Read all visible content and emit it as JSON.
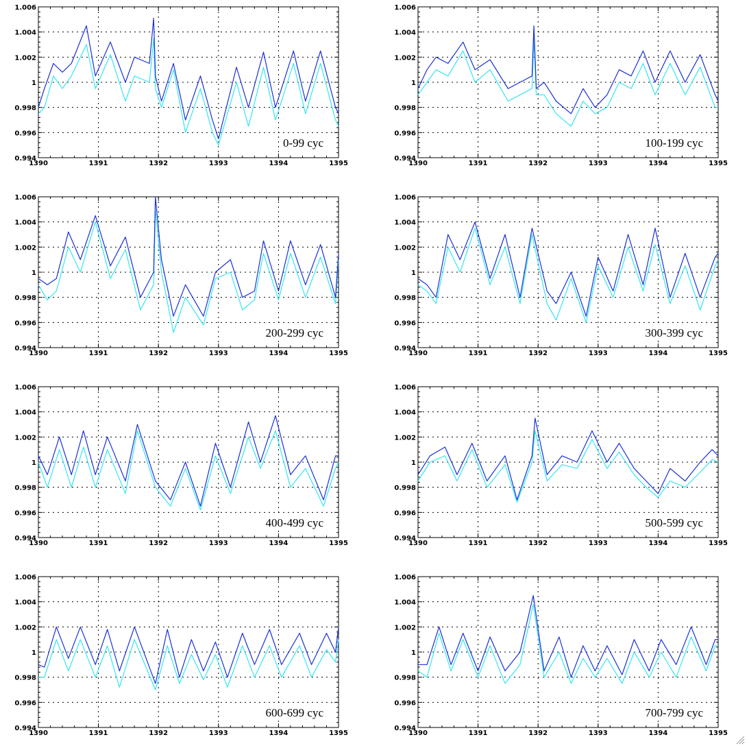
{
  "figure": {
    "colors": {
      "series_a": "#1a2fd6",
      "series_b": "#33e6f0",
      "grid": "#000000",
      "frame": "#000000"
    },
    "xticks": [
      "1390",
      "1391",
      "1392",
      "1393",
      "1394",
      "1395"
    ],
    "yticks": [
      "0.994",
      "0.996",
      "0.998",
      "1",
      "1.002",
      "1.004",
      "1.006"
    ]
  },
  "chart_data": [
    {
      "type": "line",
      "label": "0-99 cyc",
      "xlim": [
        1390,
        1395
      ],
      "ylim": [
        0.994,
        1.006
      ],
      "grid": true,
      "series": [
        {
          "color": "#1a2fd6",
          "x": [
            1390,
            1390.1,
            1390.25,
            1390.4,
            1390.55,
            1390.8,
            1390.95,
            1391.2,
            1391.45,
            1391.6,
            1391.85,
            1391.92,
            1391.95,
            1392.05,
            1392.25,
            1392.45,
            1392.7,
            1392.9,
            1393,
            1393.3,
            1393.5,
            1393.75,
            1393.95,
            1394.25,
            1394.45,
            1394.7,
            1394.95,
            1395
          ],
          "y": [
            0.998,
            0.9995,
            1.0015,
            1.0008,
            1.0015,
            1.0045,
            1.0005,
            1.0032,
            1.0,
            1.002,
            1.0015,
            1.0051,
            1.0005,
            0.9985,
            1.0015,
            0.997,
            1.0005,
            0.997,
            0.9955,
            1.0012,
            0.998,
            1.0024,
            0.998,
            1.0025,
            0.9985,
            1.0025,
            0.998,
            0.9975
          ]
        },
        {
          "color": "#33e6f0",
          "x": [
            1390,
            1390.1,
            1390.25,
            1390.4,
            1390.55,
            1390.8,
            1390.95,
            1391.2,
            1391.45,
            1391.6,
            1391.85,
            1391.92,
            1391.95,
            1392.05,
            1392.25,
            1392.45,
            1392.7,
            1392.9,
            1393,
            1393.3,
            1393.5,
            1393.75,
            1393.95,
            1394.25,
            1394.45,
            1394.7,
            1394.95,
            1395
          ],
          "y": [
            0.9975,
            0.998,
            1.0005,
            0.9995,
            1.0005,
            1.003,
            0.9995,
            1.0022,
            0.9985,
            1.0005,
            1.0,
            1.0035,
            0.9995,
            0.998,
            1.001,
            0.996,
            0.9995,
            0.996,
            0.995,
            1.0,
            0.9965,
            1.0012,
            0.997,
            1.0015,
            0.9975,
            1.0015,
            0.997,
            0.9965
          ]
        }
      ]
    },
    {
      "type": "line",
      "label": "100-199 cyc",
      "xlim": [
        1390,
        1395
      ],
      "ylim": [
        0.994,
        1.006
      ],
      "grid": true,
      "series": [
        {
          "color": "#1a2fd6",
          "x": [
            1390,
            1390.15,
            1390.3,
            1390.5,
            1390.75,
            1390.95,
            1391.2,
            1391.5,
            1391.7,
            1391.9,
            1391.93,
            1391.97,
            1392.1,
            1392.3,
            1392.55,
            1392.75,
            1392.95,
            1393.15,
            1393.35,
            1393.55,
            1393.75,
            1393.95,
            1394.2,
            1394.45,
            1394.7,
            1394.95,
            1395
          ],
          "y": [
            0.9995,
            1.001,
            1.002,
            1.0015,
            1.0032,
            1.001,
            1.0018,
            0.9995,
            1.0,
            1.0005,
            1.0045,
            0.9995,
            1.0,
            0.9985,
            0.9975,
            0.9995,
            0.998,
            0.999,
            1.001,
            1.0005,
            1.0025,
            1.0,
            1.0025,
            1.0,
            1.0022,
            0.999,
            0.9985
          ]
        },
        {
          "color": "#33e6f0",
          "x": [
            1390,
            1390.15,
            1390.3,
            1390.5,
            1390.75,
            1390.95,
            1391.2,
            1391.5,
            1391.7,
            1391.9,
            1391.93,
            1391.97,
            1392.1,
            1392.3,
            1392.55,
            1392.75,
            1392.95,
            1393.15,
            1393.35,
            1393.55,
            1393.75,
            1393.95,
            1394.2,
            1394.45,
            1394.7,
            1394.95,
            1395
          ],
          "y": [
            0.999,
            1.0,
            1.001,
            1.0005,
            1.0025,
            1.0,
            1.001,
            0.9985,
            0.999,
            0.9995,
            1.0035,
            0.999,
            0.999,
            0.9975,
            0.9965,
            0.9985,
            0.9975,
            0.998,
            1.0,
            0.9995,
            1.0015,
            0.999,
            1.0015,
            0.999,
            1.0012,
            0.998,
            0.998
          ]
        }
      ]
    },
    {
      "type": "line",
      "label": "200-299 cyc",
      "xlim": [
        1390,
        1395
      ],
      "ylim": [
        0.994,
        1.006
      ],
      "grid": true,
      "series": [
        {
          "color": "#1a2fd6",
          "x": [
            1390,
            1390.15,
            1390.3,
            1390.5,
            1390.7,
            1390.95,
            1391.2,
            1391.45,
            1391.7,
            1391.92,
            1391.95,
            1392.05,
            1392.25,
            1392.45,
            1392.75,
            1392.95,
            1393.2,
            1393.4,
            1393.6,
            1393.75,
            1394.0,
            1394.2,
            1394.45,
            1394.7,
            1394.95,
            1395
          ],
          "y": [
            0.9995,
            0.999,
            0.9995,
            1.0032,
            1.001,
            1.0045,
            1.0005,
            1.0028,
            0.998,
            1.0,
            1.006,
            1.001,
            0.9965,
            0.999,
            0.9965,
            1.0,
            1.001,
            0.998,
            0.9985,
            1.0025,
            0.9985,
            1.0025,
            0.999,
            1.0022,
            0.998,
            1.0015
          ]
        },
        {
          "color": "#33e6f0",
          "x": [
            1390,
            1390.15,
            1390.3,
            1390.5,
            1390.7,
            1390.95,
            1391.2,
            1391.45,
            1391.7,
            1391.92,
            1391.95,
            1392.05,
            1392.25,
            1392.45,
            1392.75,
            1392.95,
            1393.2,
            1393.4,
            1393.6,
            1393.75,
            1394.0,
            1394.2,
            1394.45,
            1394.7,
            1394.95,
            1395
          ],
          "y": [
            0.999,
            0.9978,
            0.9985,
            1.002,
            1.0,
            1.004,
            0.9995,
            1.0018,
            0.997,
            0.999,
            1.005,
            1.0,
            0.9952,
            0.998,
            0.9958,
            0.9995,
            1.0,
            0.997,
            0.9978,
            1.0015,
            0.9978,
            1.0015,
            0.998,
            1.0012,
            0.9975,
            1.001
          ]
        }
      ]
    },
    {
      "type": "line",
      "label": "300-399 cyc",
      "xlim": [
        1390,
        1395
      ],
      "ylim": [
        0.994,
        1.006
      ],
      "grid": true,
      "series": [
        {
          "color": "#1a2fd6",
          "x": [
            1390,
            1390.15,
            1390.3,
            1390.5,
            1390.7,
            1390.95,
            1391.2,
            1391.45,
            1391.7,
            1391.9,
            1392.15,
            1392.3,
            1392.55,
            1392.8,
            1393.0,
            1393.25,
            1393.5,
            1393.75,
            1393.95,
            1394.2,
            1394.45,
            1394.7,
            1394.95,
            1395
          ],
          "y": [
            0.9995,
            0.999,
            0.998,
            1.003,
            1.001,
            1.004,
            0.9995,
            1.003,
            0.998,
            1.0035,
            0.9985,
            0.9975,
            1.0,
            0.9965,
            1.0012,
            0.9985,
            1.003,
            0.999,
            1.0035,
            0.998,
            1.0015,
            0.998,
            1.0012,
            1.0015
          ]
        },
        {
          "color": "#33e6f0",
          "x": [
            1390,
            1390.15,
            1390.3,
            1390.5,
            1390.7,
            1390.95,
            1391.2,
            1391.45,
            1391.7,
            1391.9,
            1392.15,
            1392.3,
            1392.55,
            1392.8,
            1393.0,
            1393.25,
            1393.5,
            1393.75,
            1393.95,
            1394.2,
            1394.45,
            1394.7,
            1394.95,
            1395
          ],
          "y": [
            0.999,
            0.9985,
            0.9975,
            1.002,
            1.0,
            1.0035,
            0.999,
            1.002,
            0.9975,
            1.003,
            0.9975,
            0.9962,
            0.9995,
            0.996,
            1.0005,
            0.998,
            1.002,
            0.9985,
            1.0022,
            0.9975,
            1.0005,
            0.997,
            1.0005,
            1.001
          ]
        }
      ]
    },
    {
      "type": "line",
      "label": "400-499 cyc",
      "xlim": [
        1390,
        1395
      ],
      "ylim": [
        0.994,
        1.006
      ],
      "grid": true,
      "series": [
        {
          "color": "#1a2fd6",
          "x": [
            1390,
            1390.15,
            1390.35,
            1390.55,
            1390.75,
            1390.95,
            1391.15,
            1391.45,
            1391.65,
            1391.95,
            1392.2,
            1392.45,
            1392.7,
            1392.95,
            1393.2,
            1393.5,
            1393.7,
            1393.95,
            1394.2,
            1394.45,
            1394.75,
            1394.95,
            1395
          ],
          "y": [
            1.0005,
            0.999,
            1.002,
            0.999,
            1.0025,
            0.999,
            1.002,
            0.9985,
            1.003,
            0.9985,
            0.997,
            1.0,
            0.9965,
            1.0015,
            0.998,
            1.0032,
            1.0,
            1.0037,
            0.999,
            1.0005,
            0.997,
            1.0005,
            1.0005
          ]
        },
        {
          "color": "#33e6f0",
          "x": [
            1390,
            1390.15,
            1390.35,
            1390.55,
            1390.75,
            1390.95,
            1391.15,
            1391.45,
            1391.65,
            1391.95,
            1392.2,
            1392.45,
            1392.7,
            1392.95,
            1393.2,
            1393.5,
            1393.7,
            1393.95,
            1394.2,
            1394.45,
            1394.75,
            1394.95,
            1395
          ],
          "y": [
            1.0,
            0.998,
            1.001,
            0.998,
            1.0012,
            0.998,
            1.001,
            0.9975,
            1.0025,
            0.998,
            0.9965,
            0.9995,
            0.9962,
            1.0005,
            0.9975,
            1.002,
            0.9995,
            1.0025,
            0.998,
            0.9995,
            0.9965,
            0.9995,
            1.0
          ]
        }
      ]
    },
    {
      "type": "line",
      "label": "500-599 cyc",
      "xlim": [
        1390,
        1395
      ],
      "ylim": [
        0.994,
        1.006
      ],
      "grid": true,
      "series": [
        {
          "color": "#1a2fd6",
          "x": [
            1390,
            1390.2,
            1390.45,
            1390.65,
            1390.9,
            1391.15,
            1391.45,
            1391.65,
            1391.9,
            1391.95,
            1392.15,
            1392.4,
            1392.65,
            1392.9,
            1393.15,
            1393.35,
            1393.6,
            1393.8,
            1394.0,
            1394.2,
            1394.45,
            1394.7,
            1394.9,
            1395
          ],
          "y": [
            0.999,
            1.0005,
            1.0012,
            0.999,
            1.0015,
            0.9985,
            1.0005,
            0.997,
            1.0005,
            1.0035,
            0.999,
            1.0005,
            1.0,
            1.0025,
            1.0,
            1.0015,
            0.9995,
            0.9985,
            0.9975,
            0.9995,
            0.9985,
            1.0,
            1.001,
            1.0005
          ]
        },
        {
          "color": "#33e6f0",
          "x": [
            1390,
            1390.2,
            1390.45,
            1390.65,
            1390.9,
            1391.15,
            1391.45,
            1391.65,
            1391.9,
            1391.95,
            1392.15,
            1392.4,
            1392.65,
            1392.9,
            1393.15,
            1393.35,
            1393.6,
            1393.8,
            1394.0,
            1394.2,
            1394.45,
            1394.7,
            1394.9,
            1395
          ],
          "y": [
            0.9985,
            1.0,
            1.0005,
            0.9985,
            1.001,
            0.998,
            0.9998,
            0.9968,
            1.0,
            1.0025,
            0.9985,
            0.9998,
            0.9995,
            1.0018,
            0.9995,
            1.0008,
            0.999,
            0.998,
            0.9972,
            0.9985,
            0.998,
            0.9992,
            1.0002,
            1.0
          ]
        }
      ]
    },
    {
      "type": "line",
      "label": "600-699 cyc",
      "xlim": [
        1390,
        1395
      ],
      "ylim": [
        0.994,
        1.006
      ],
      "grid": true,
      "series": [
        {
          "color": "#1a2fd6",
          "x": [
            1390,
            1390.1,
            1390.3,
            1390.5,
            1390.7,
            1390.95,
            1391.15,
            1391.35,
            1391.6,
            1391.95,
            1392.15,
            1392.35,
            1392.55,
            1392.75,
            1392.95,
            1393.15,
            1393.4,
            1393.6,
            1393.85,
            1394.05,
            1394.35,
            1394.55,
            1394.8,
            1394.95,
            1395
          ],
          "y": [
            0.999,
            0.9988,
            1.002,
            0.9995,
            1.002,
            0.999,
            1.0018,
            0.9985,
            1.002,
            0.9975,
            1.0018,
            0.998,
            1.001,
            0.9985,
            1.0008,
            0.998,
            1.0015,
            0.999,
            1.0018,
            0.999,
            1.0015,
            0.999,
            1.0015,
            1.0,
            1.002
          ]
        },
        {
          "color": "#33e6f0",
          "x": [
            1390,
            1390.1,
            1390.3,
            1390.5,
            1390.7,
            1390.95,
            1391.15,
            1391.35,
            1391.6,
            1391.95,
            1392.15,
            1392.35,
            1392.55,
            1392.75,
            1392.95,
            1393.15,
            1393.4,
            1393.6,
            1393.85,
            1394.05,
            1394.35,
            1394.55,
            1394.8,
            1394.95,
            1395
          ],
          "y": [
            0.998,
            0.998,
            1.001,
            0.9985,
            1.001,
            0.998,
            1.0005,
            0.9972,
            1.001,
            0.997,
            1.0005,
            0.9975,
            0.9998,
            0.9978,
            0.9998,
            0.9972,
            1.0005,
            0.998,
            1.0005,
            0.998,
            1.0005,
            0.998,
            1.0002,
            0.9992,
            1.001
          ]
        }
      ]
    },
    {
      "type": "line",
      "label": "700-799 cyc",
      "xlim": [
        1390,
        1395
      ],
      "ylim": [
        0.994,
        1.006
      ],
      "grid": true,
      "series": [
        {
          "color": "#1a2fd6",
          "x": [
            1390,
            1390.15,
            1390.35,
            1390.55,
            1390.75,
            1391.0,
            1391.2,
            1391.45,
            1391.7,
            1391.92,
            1392.1,
            1392.35,
            1392.55,
            1392.75,
            1392.95,
            1393.15,
            1393.4,
            1393.6,
            1393.85,
            1394.05,
            1394.3,
            1394.55,
            1394.8,
            1394.95,
            1395
          ],
          "y": [
            0.999,
            0.999,
            1.002,
            0.999,
            1.0015,
            0.9985,
            1.0012,
            0.9985,
            1.0,
            1.0045,
            0.9985,
            1.0012,
            0.998,
            1.0005,
            0.9985,
            1.0005,
            0.9982,
            1.001,
            0.9985,
            1.001,
            0.999,
            1.002,
            0.999,
            1.001,
            1.001
          ]
        },
        {
          "color": "#33e6f0",
          "x": [
            1390,
            1390.15,
            1390.35,
            1390.55,
            1390.75,
            1391.0,
            1391.2,
            1391.45,
            1391.7,
            1391.92,
            1392.1,
            1392.35,
            1392.55,
            1392.75,
            1392.95,
            1393.15,
            1393.4,
            1393.6,
            1393.85,
            1394.05,
            1394.3,
            1394.55,
            1394.8,
            1394.95,
            1395
          ],
          "y": [
            0.9985,
            0.998,
            1.0015,
            0.9985,
            1.001,
            0.998,
            1.0005,
            0.9975,
            0.999,
            1.0038,
            0.998,
            1.0,
            0.9975,
            0.9995,
            0.998,
            0.9995,
            0.9975,
            1.0,
            0.998,
            1.0,
            0.998,
            1.0012,
            0.9985,
            1.0005,
            1.0005
          ]
        }
      ]
    }
  ]
}
